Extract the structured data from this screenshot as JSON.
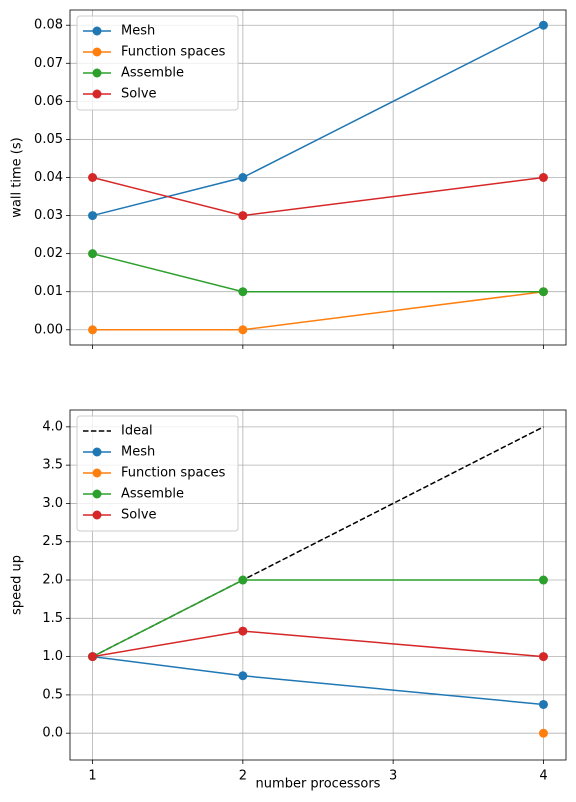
{
  "chart_data": [
    {
      "type": "line",
      "ylabel": "wall time (s)",
      "x": [
        1,
        2,
        4
      ],
      "xlim": [
        0.85,
        4.15
      ],
      "xticks": [
        1,
        2,
        3,
        4
      ],
      "ylim": [
        -0.004,
        0.084
      ],
      "yticks": [
        {
          "value": 0,
          "label": "0.00"
        },
        0.01,
        0.02,
        0.03,
        0.04,
        0.05,
        0.06,
        0.07,
        0.08
      ],
      "grid": true,
      "legend": "upper left",
      "show_xtick_labels": false,
      "series": [
        {
          "name": "Mesh",
          "color": "#1f77b4",
          "values": [
            0.03,
            0.04,
            0.08
          ]
        },
        {
          "name": "Function spaces",
          "color": "#ff7f0e",
          "values": [
            0,
            0,
            0.01
          ]
        },
        {
          "name": "Assemble",
          "color": "#2ca02c",
          "values": [
            0.02,
            0.01,
            0.01
          ]
        },
        {
          "name": "Solve",
          "color": "#d62728",
          "values": [
            0.04,
            0.03,
            0.04
          ]
        }
      ]
    },
    {
      "type": "line",
      "ylabel": "speed up",
      "xlabel": "number processors",
      "x": [
        1,
        2,
        4
      ],
      "xlim": [
        0.85,
        4.15
      ],
      "xticks": [
        1,
        2,
        3,
        4
      ],
      "ylim": [
        -0.35,
        4.22
      ],
      "yticks": [
        {
          "value": 0,
          "label": "0.0"
        },
        0.5,
        {
          "value": 1,
          "label": "1.0"
        },
        1.5,
        {
          "value": 2,
          "label": "2.0"
        },
        2.5,
        {
          "value": 3,
          "label": "3.0"
        },
        3.5,
        {
          "value": 4,
          "label": "4.0"
        }
      ],
      "grid": true,
      "legend": "upper left",
      "show_xtick_labels": true,
      "series": [
        {
          "name": "Ideal",
          "color": "#000000",
          "linestyle": "dashed",
          "marker": false,
          "values": [
            1,
            2,
            4
          ]
        },
        {
          "name": "Mesh",
          "color": "#1f77b4",
          "values": [
            1,
            0.75,
            0.375
          ]
        },
        {
          "name": "Function spaces",
          "color": "#ff7f0e",
          "values": [
            null,
            null,
            0
          ]
        },
        {
          "name": "Assemble",
          "color": "#2ca02c",
          "values": [
            1,
            2,
            2
          ]
        },
        {
          "name": "Solve",
          "color": "#d62728",
          "values": [
            1,
            1.333,
            1
          ]
        }
      ]
    }
  ]
}
